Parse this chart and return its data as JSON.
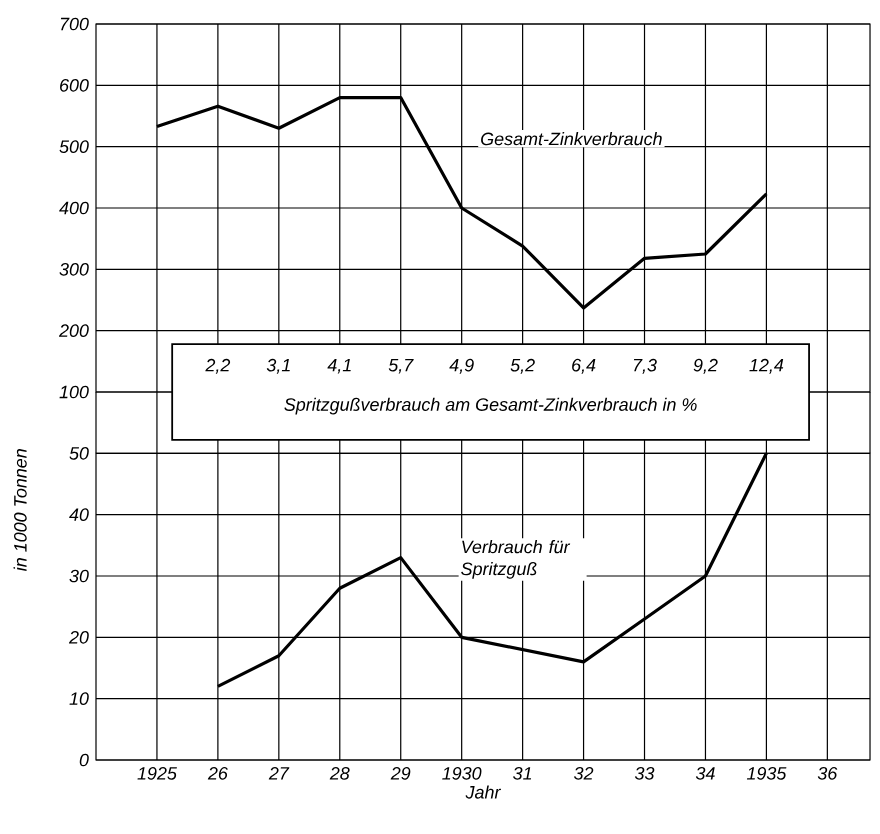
{
  "chart_data": [
    {
      "type": "line",
      "ylabel": "in 1000 Tonnen",
      "x": [
        1925,
        1926,
        1927,
        1928,
        1929,
        1930,
        1931,
        1932,
        1933,
        1934,
        1935
      ],
      "series": [
        {
          "name": "Gesamt-Zinkverbrauch",
          "color": "#000000",
          "values": [
            533,
            566,
            530,
            580,
            580,
            400,
            338,
            237,
            318,
            325,
            423
          ]
        }
      ],
      "xlim": [
        1924,
        1936.7
      ],
      "ylim": [
        100,
        700
      ],
      "xticks": [
        1925,
        1926,
        1927,
        1928,
        1929,
        1930,
        1931,
        1932,
        1933,
        1934,
        1935,
        1936
      ],
      "yticks": [
        100,
        200,
        300,
        400,
        500,
        600,
        700
      ],
      "tick_labels": "y",
      "annotations": [
        "2,2",
        "3,1",
        "4,1",
        "5,7",
        "4,9",
        "5,2",
        "6,4",
        "7,3",
        "9,2",
        "12,4",
        "Spritzgußverbrauch am Gesamt-Zinkverbrauch in %"
      ],
      "grid": true,
      "marker": "none",
      "line_style": "solid"
    },
    {
      "type": "line",
      "xlabel": "Jahr",
      "x": [
        1926,
        1927,
        1928,
        1929,
        1930,
        1931,
        1932,
        1933,
        1934,
        1935
      ],
      "series": [
        {
          "name": "Verbrauch für Spritzguß",
          "color": "#000000",
          "values": [
            12,
            17,
            28,
            33,
            20,
            18,
            16,
            23,
            30,
            50
          ]
        }
      ],
      "xlim": [
        1924,
        1936.7
      ],
      "ylim": [
        0,
        50
      ],
      "xticks": [
        {
          "value": 1925,
          "label": "1925"
        },
        {
          "value": 1926,
          "label": "26"
        },
        {
          "value": 1927,
          "label": "27"
        },
        {
          "value": 1928,
          "label": "28"
        },
        {
          "value": 1929,
          "label": "29"
        },
        {
          "value": 1930,
          "label": "1930"
        },
        {
          "value": 1931,
          "label": "31"
        },
        {
          "value": 1932,
          "label": "32"
        },
        {
          "value": 1933,
          "label": "33"
        },
        {
          "value": 1934,
          "label": "34"
        },
        {
          "value": 1935,
          "label": "1935"
        },
        {
          "value": 1936,
          "label": "36"
        }
      ],
      "yticks": [
        0,
        10,
        20,
        30,
        40,
        50
      ],
      "grid": true,
      "marker": "none",
      "line_style": "solid"
    }
  ]
}
